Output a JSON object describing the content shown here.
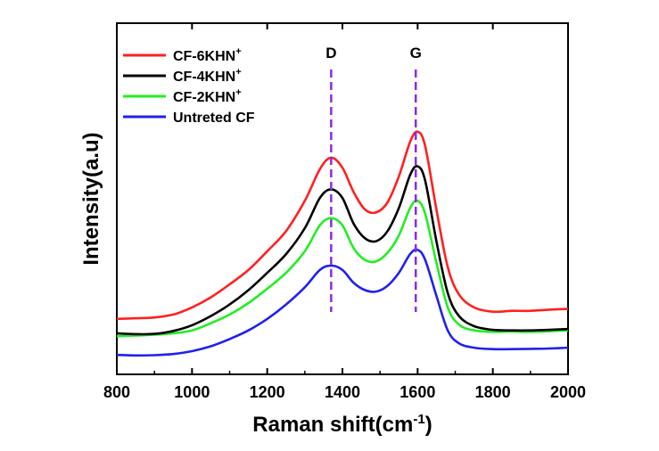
{
  "chart_data": {
    "type": "line",
    "title": "",
    "xlabel": "Raman shift(cm",
    "xlabel_sup": "-1",
    "xlabel_close": ")",
    "ylabel": "Intensity(a.u)",
    "xlim": [
      800,
      2000
    ],
    "ylim": [
      0,
      1
    ],
    "x_ticks": [
      "800",
      "1000",
      "1200",
      "1400",
      "1600",
      "1800",
      "2000"
    ],
    "grid": false,
    "legend_position": "top-left",
    "annotations": [
      {
        "label": "D",
        "x": 1370
      },
      {
        "label": "G",
        "x": 1595
      }
    ],
    "series": [
      {
        "name": "CF-6KHN",
        "name_sup": "+",
        "color": "#ff2020",
        "points": [
          [
            800,
            0.14
          ],
          [
            850,
            0.142
          ],
          [
            900,
            0.145
          ],
          [
            950,
            0.155
          ],
          [
            1000,
            0.18
          ],
          [
            1050,
            0.215
          ],
          [
            1100,
            0.26
          ],
          [
            1150,
            0.31
          ],
          [
            1200,
            0.375
          ],
          [
            1250,
            0.445
          ],
          [
            1300,
            0.55
          ],
          [
            1340,
            0.66
          ],
          [
            1370,
            0.7
          ],
          [
            1400,
            0.665
          ],
          [
            1430,
            0.58
          ],
          [
            1460,
            0.52
          ],
          [
            1490,
            0.51
          ],
          [
            1520,
            0.545
          ],
          [
            1550,
            0.635
          ],
          [
            1580,
            0.755
          ],
          [
            1600,
            0.79
          ],
          [
            1620,
            0.74
          ],
          [
            1650,
            0.52
          ],
          [
            1680,
            0.32
          ],
          [
            1710,
            0.225
          ],
          [
            1750,
            0.18
          ],
          [
            1800,
            0.165
          ],
          [
            1850,
            0.168
          ],
          [
            1900,
            0.168
          ],
          [
            1950,
            0.172
          ],
          [
            2000,
            0.175
          ]
        ]
      },
      {
        "name": "CF-4KHN",
        "name_sup": "+",
        "color": "#000000",
        "points": [
          [
            800,
            0.09
          ],
          [
            850,
            0.087
          ],
          [
            900,
            0.088
          ],
          [
            950,
            0.098
          ],
          [
            1000,
            0.118
          ],
          [
            1050,
            0.15
          ],
          [
            1100,
            0.19
          ],
          [
            1150,
            0.24
          ],
          [
            1200,
            0.3
          ],
          [
            1250,
            0.365
          ],
          [
            1300,
            0.455
          ],
          [
            1340,
            0.56
          ],
          [
            1370,
            0.59
          ],
          [
            1400,
            0.56
          ],
          [
            1430,
            0.47
          ],
          [
            1460,
            0.42
          ],
          [
            1490,
            0.41
          ],
          [
            1520,
            0.445
          ],
          [
            1550,
            0.525
          ],
          [
            1580,
            0.64
          ],
          [
            1600,
            0.67
          ],
          [
            1620,
            0.62
          ],
          [
            1650,
            0.41
          ],
          [
            1680,
            0.23
          ],
          [
            1710,
            0.15
          ],
          [
            1750,
            0.115
          ],
          [
            1800,
            0.102
          ],
          [
            1850,
            0.1
          ],
          [
            1900,
            0.1
          ],
          [
            1950,
            0.102
          ],
          [
            2000,
            0.105
          ]
        ]
      },
      {
        "name": "CF-2KHN",
        "name_sup": "+",
        "color": "#22ee22",
        "points": [
          [
            800,
            0.08
          ],
          [
            850,
            0.082
          ],
          [
            900,
            0.085
          ],
          [
            950,
            0.09
          ],
          [
            1000,
            0.1
          ],
          [
            1050,
            0.125
          ],
          [
            1100,
            0.155
          ],
          [
            1150,
            0.195
          ],
          [
            1200,
            0.245
          ],
          [
            1250,
            0.3
          ],
          [
            1300,
            0.375
          ],
          [
            1340,
            0.465
          ],
          [
            1370,
            0.49
          ],
          [
            1400,
            0.465
          ],
          [
            1430,
            0.385
          ],
          [
            1460,
            0.345
          ],
          [
            1490,
            0.34
          ],
          [
            1520,
            0.37
          ],
          [
            1550,
            0.43
          ],
          [
            1580,
            0.525
          ],
          [
            1600,
            0.55
          ],
          [
            1620,
            0.505
          ],
          [
            1650,
            0.335
          ],
          [
            1680,
            0.18
          ],
          [
            1710,
            0.12
          ],
          [
            1750,
            0.1
          ],
          [
            1800,
            0.095
          ],
          [
            1850,
            0.096
          ],
          [
            1900,
            0.095
          ],
          [
            1950,
            0.097
          ],
          [
            2000,
            0.1
          ]
        ]
      },
      {
        "name": "Untreted CF",
        "name_sup": "",
        "color": "#2020ee",
        "points": [
          [
            800,
            0.015
          ],
          [
            850,
            0.013
          ],
          [
            900,
            0.014
          ],
          [
            950,
            0.018
          ],
          [
            1000,
            0.028
          ],
          [
            1050,
            0.045
          ],
          [
            1100,
            0.07
          ],
          [
            1150,
            0.1
          ],
          [
            1200,
            0.14
          ],
          [
            1250,
            0.19
          ],
          [
            1300,
            0.25
          ],
          [
            1340,
            0.31
          ],
          [
            1370,
            0.325
          ],
          [
            1400,
            0.31
          ],
          [
            1430,
            0.265
          ],
          [
            1460,
            0.24
          ],
          [
            1490,
            0.235
          ],
          [
            1520,
            0.255
          ],
          [
            1550,
            0.3
          ],
          [
            1580,
            0.365
          ],
          [
            1600,
            0.38
          ],
          [
            1620,
            0.345
          ],
          [
            1650,
            0.22
          ],
          [
            1680,
            0.1
          ],
          [
            1710,
            0.055
          ],
          [
            1750,
            0.04
          ],
          [
            1800,
            0.035
          ],
          [
            1850,
            0.035
          ],
          [
            1900,
            0.036
          ],
          [
            1950,
            0.037
          ],
          [
            2000,
            0.04
          ]
        ]
      }
    ]
  }
}
